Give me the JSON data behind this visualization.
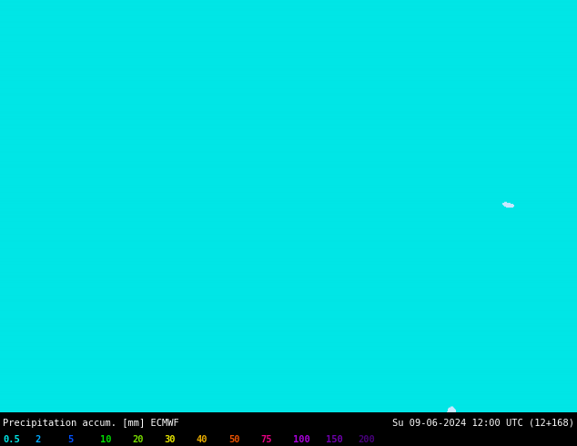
{
  "title_left": "Precipitation accum. [mm] ECMWF",
  "title_right": "Su 09-06-2024 12:00 UTC (12+168)",
  "legend_values": [
    "0.5",
    "2",
    "5",
    "10",
    "20",
    "30",
    "40",
    "50",
    "75",
    "100",
    "150",
    "200"
  ],
  "legend_colors_hex": [
    "#00e6e6",
    "#00aaff",
    "#0050ff",
    "#00dc00",
    "#78dc00",
    "#e6e600",
    "#e6aa00",
    "#e65000",
    "#e60082",
    "#aa00dc",
    "#6e00aa",
    "#460078"
  ],
  "thresholds": [
    0.5,
    2,
    5,
    10,
    20,
    30,
    40,
    50,
    75,
    100,
    150,
    200
  ],
  "precip_colors": [
    "#00e6e6",
    "#00aaff",
    "#0050ff",
    "#00dc00",
    "#78dc00",
    "#e6e600",
    "#e6aa00",
    "#e65000",
    "#e60082",
    "#aa00dc",
    "#6e00aa",
    "#460078"
  ],
  "bg_color": "#000000",
  "text_color": "#ffffff",
  "land_color_lo": "#c8dc96",
  "land_color_hi": "#7896a0",
  "ocean_color": "#d2eeff",
  "fig_width": 6.34,
  "fig_height": 4.9,
  "extent": [
    -170,
    -50,
    10,
    75
  ],
  "num_rows": 37,
  "num_cols": 75,
  "seed_precip": 2024,
  "seed_nums": 777
}
